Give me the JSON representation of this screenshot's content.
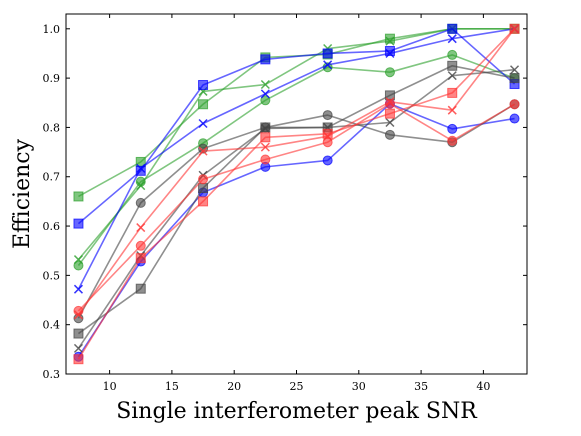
{
  "chart_data": {
    "type": "line",
    "title": "",
    "xlabel": "Single interferometer peak SNR",
    "ylabel": "Efficiency",
    "xlim": [
      6.5,
      43.5
    ],
    "ylim": [
      0.3,
      1.03
    ],
    "xticks": [
      10,
      15,
      20,
      25,
      30,
      35,
      40
    ],
    "yticks": [
      0.3,
      0.4,
      0.5,
      0.6,
      0.7,
      0.8,
      0.9,
      1.0
    ],
    "grid": false,
    "legend": "none",
    "x": [
      7.5,
      12.5,
      17.5,
      22.5,
      27.5,
      32.5,
      37.5,
      42.5
    ],
    "series": [
      {
        "color": "#2ca02c",
        "marker": "square",
        "values": [
          0.66,
          0.73,
          0.847,
          0.942,
          0.948,
          0.98,
          1.0,
          1.0
        ]
      },
      {
        "color": "#2ca02c",
        "marker": "circle",
        "values": [
          0.52,
          0.69,
          0.768,
          0.855,
          0.922,
          0.912,
          0.947,
          0.9
        ]
      },
      {
        "color": "#2ca02c",
        "marker": "x",
        "values": [
          0.532,
          0.682,
          0.873,
          0.887,
          0.96,
          0.975,
          1.0,
          1.0
        ]
      },
      {
        "color": "#0000ff",
        "marker": "square",
        "values": [
          0.605,
          0.712,
          0.886,
          0.938,
          0.95,
          0.955,
          1.0,
          0.888
        ]
      },
      {
        "color": "#0000ff",
        "marker": "circle",
        "values": [
          0.335,
          0.528,
          0.668,
          0.72,
          0.733,
          0.848,
          0.797,
          0.818
        ]
      },
      {
        "color": "#0000ff",
        "marker": "x",
        "values": [
          0.472,
          0.717,
          0.808,
          0.868,
          0.927,
          0.95,
          0.98,
          1.0
        ]
      },
      {
        "color": "#444444",
        "marker": "square",
        "values": [
          0.382,
          0.473,
          0.677,
          0.8,
          0.8,
          0.865,
          0.925,
          0.9
        ]
      },
      {
        "color": "#444444",
        "marker": "circle",
        "values": [
          0.413,
          0.647,
          0.757,
          0.8,
          0.825,
          0.785,
          0.77,
          0.847
        ]
      },
      {
        "color": "#444444",
        "marker": "x",
        "values": [
          0.352,
          0.54,
          0.703,
          0.798,
          0.8,
          0.81,
          0.905,
          0.917
        ]
      },
      {
        "color": "#ff3333",
        "marker": "square",
        "values": [
          0.33,
          0.535,
          0.65,
          0.78,
          0.787,
          0.828,
          0.87,
          1.0
        ]
      },
      {
        "color": "#ff3333",
        "marker": "circle",
        "values": [
          0.428,
          0.56,
          0.695,
          0.735,
          0.77,
          0.848,
          0.773,
          0.847
        ]
      },
      {
        "color": "#ff3333",
        "marker": "x",
        "values": [
          0.42,
          0.597,
          0.752,
          0.76,
          0.782,
          0.852,
          0.835,
          1.0
        ]
      }
    ]
  }
}
